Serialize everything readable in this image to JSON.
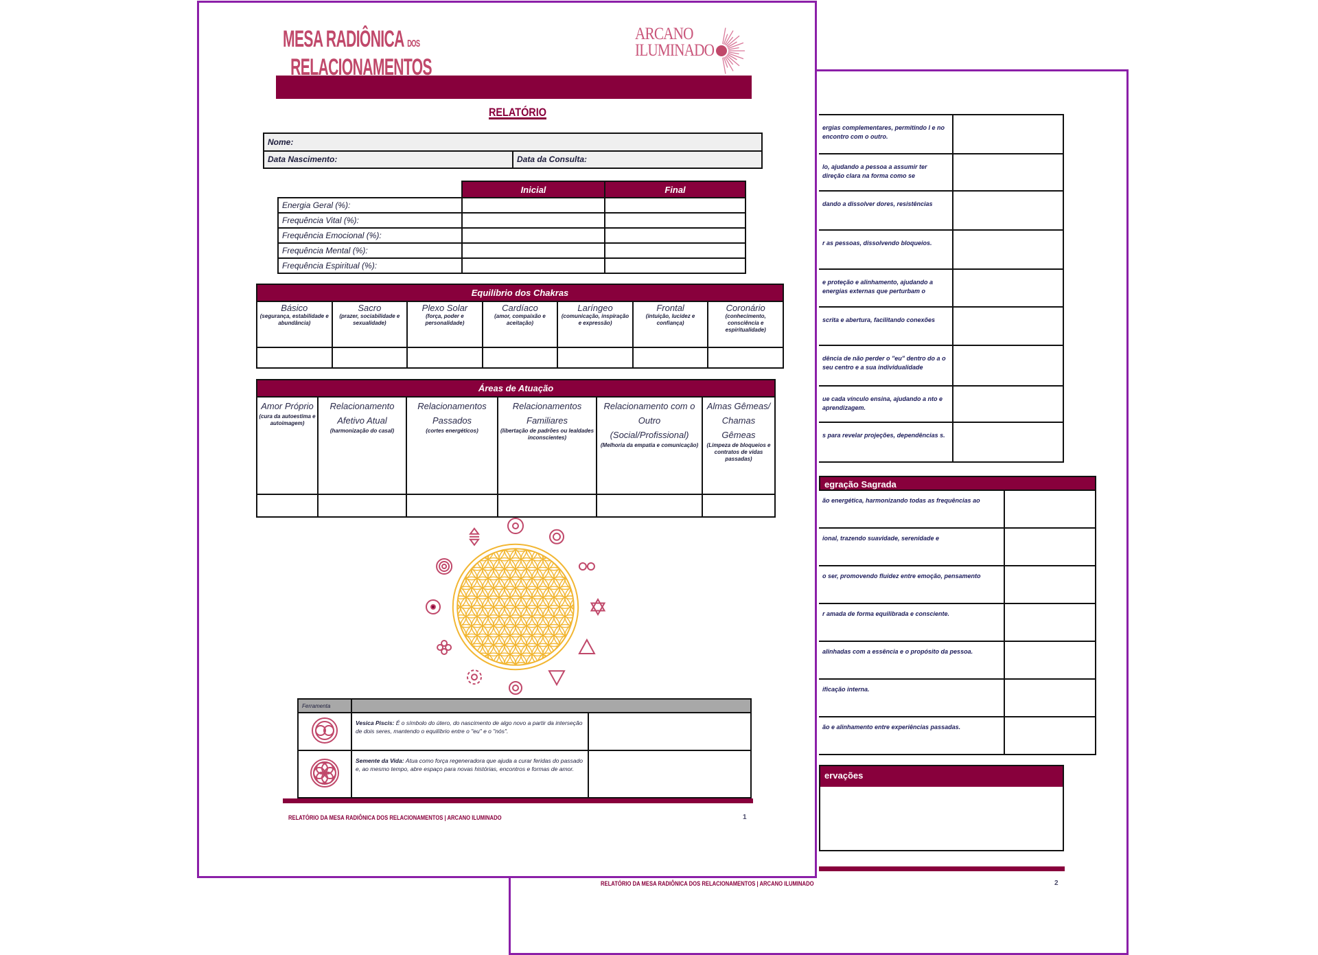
{
  "colors": {
    "brand": "#88003c",
    "page_border": "#8b1fa8",
    "flower": "#f2b632",
    "symbols": "#c0486a"
  },
  "page1": {
    "title_line1": "MESA RADIÔNICA",
    "title_dos": "DOS",
    "title_line2": "RELACIONAMENTOS",
    "logo_line1": "ARCANO",
    "logo_line2": "ILUMINADO",
    "report_title": "RELATÓRIO",
    "client": {
      "name_label": "Nome:",
      "birth_label": "Data Nascimento:",
      "consult_label": "Data da Consulta:"
    },
    "frequencies": {
      "headers": [
        "Inicial",
        "Final"
      ],
      "rows": [
        "Energia Geral (%):",
        "Frequência Vital (%):",
        "Frequência Emocional (%):",
        "Frequência Mental (%):",
        "Frequência Espiritual (%):"
      ]
    },
    "chakras": {
      "title": "Equilíbrio dos Chakras",
      "items": [
        {
          "name": "Básico",
          "desc": "(segurança, estabilidade e abundância)"
        },
        {
          "name": "Sacro",
          "desc": "(prazer, sociabilidade e sexualidade)"
        },
        {
          "name": "Plexo Solar",
          "desc": "(força, poder e personalidade)"
        },
        {
          "name": "Cardíaco",
          "desc": "(amor, compaixão e aceitação)"
        },
        {
          "name": "Laríngeo",
          "desc": "(comunicação, inspiração e expressão)"
        },
        {
          "name": "Frontal",
          "desc": "(intuição, lucidez e confiança)"
        },
        {
          "name": "Coronário",
          "desc": "(conhecimento, consciência e espiritualidade)"
        }
      ]
    },
    "areas": {
      "title": "Áreas de Atuação",
      "items": [
        {
          "name": "Amor Próprio",
          "desc": "(cura da autoestima e autoimagem)"
        },
        {
          "name": "Relacionamento Afetivo Atual",
          "desc": "(harmonização do casal)"
        },
        {
          "name": "Relacionamentos Passados",
          "desc": "(cortes energéticos)"
        },
        {
          "name": "Relacionamentos Familiares",
          "desc": "(libertação de padrões ou lealdades inconscientes)"
        },
        {
          "name": "Relacionamento com o Outro (Social/Profissional)",
          "desc": "(Melhoria da empatia e comunicação)"
        },
        {
          "name": "Almas Gêmeas/ Chamas Gêmeas",
          "desc": "(Limpeza de bloqueios e contratos de vidas passadas)"
        }
      ]
    },
    "tools": {
      "header": "Ferramenta",
      "rows": [
        {
          "icon": "vesica-piscis-icon",
          "name": "Vesica Piscis:",
          "text": "É o símbolo do útero, do nascimento de algo novo a partir da interseção de dois seres, mantendo o equilíbrio entre o \"eu\" e o \"nós\"."
        },
        {
          "icon": "seed-of-life-icon",
          "name": "Semente da Vida:",
          "text": "Atua como força regeneradora que ajuda a curar feridas do passado e, ao mesmo tempo, abre espaço para novas histórias, encontros e formas de amor."
        }
      ]
    },
    "footer": "RELATÓRIO DA MESA RADIÔNICA DOS RELACIONAMENTOS | ARCANO ILUMINADO",
    "page_number": "1"
  },
  "page2": {
    "table1_rows": [
      "ergias complementares, permitindo l e no encontro com o outro.",
      "lo, ajudando a pessoa a assumir ter direção clara na forma como se",
      "dando a dissolver dores, resistências",
      "r as pessoas, dissolvendo bloqueios.",
      "e proteção e alinhamento, ajudando a energias externas que perturbam o",
      "scrita e abertura, facilitando conexões",
      "dência de não perder o \"eu\" dentro do a o seu centro e a sua individualidade",
      "ue cada vínculo ensina, ajudando a nto e aprendizagem.",
      "s para revelar projeções, dependências s."
    ],
    "table2_title": "egração Sagrada",
    "table2_rows": [
      "ão energética, harmonizando todas as frequências ao",
      "ional, trazendo suavidade, serenidade e",
      "o ser, promovendo fluidez entre emoção, pensamento",
      "r amada de forma equilibrada e consciente.",
      "alinhadas com a essência e o propósito da pessoa.",
      "ificação interna.",
      "ão e alinhamento entre experiências passadas."
    ],
    "observations_title": "ervações",
    "footer": "RELATÓRIO DA MESA RADIÔNICA DOS RELACIONAMENTOS | ARCANO ILUMINADO",
    "page_number": "2"
  }
}
